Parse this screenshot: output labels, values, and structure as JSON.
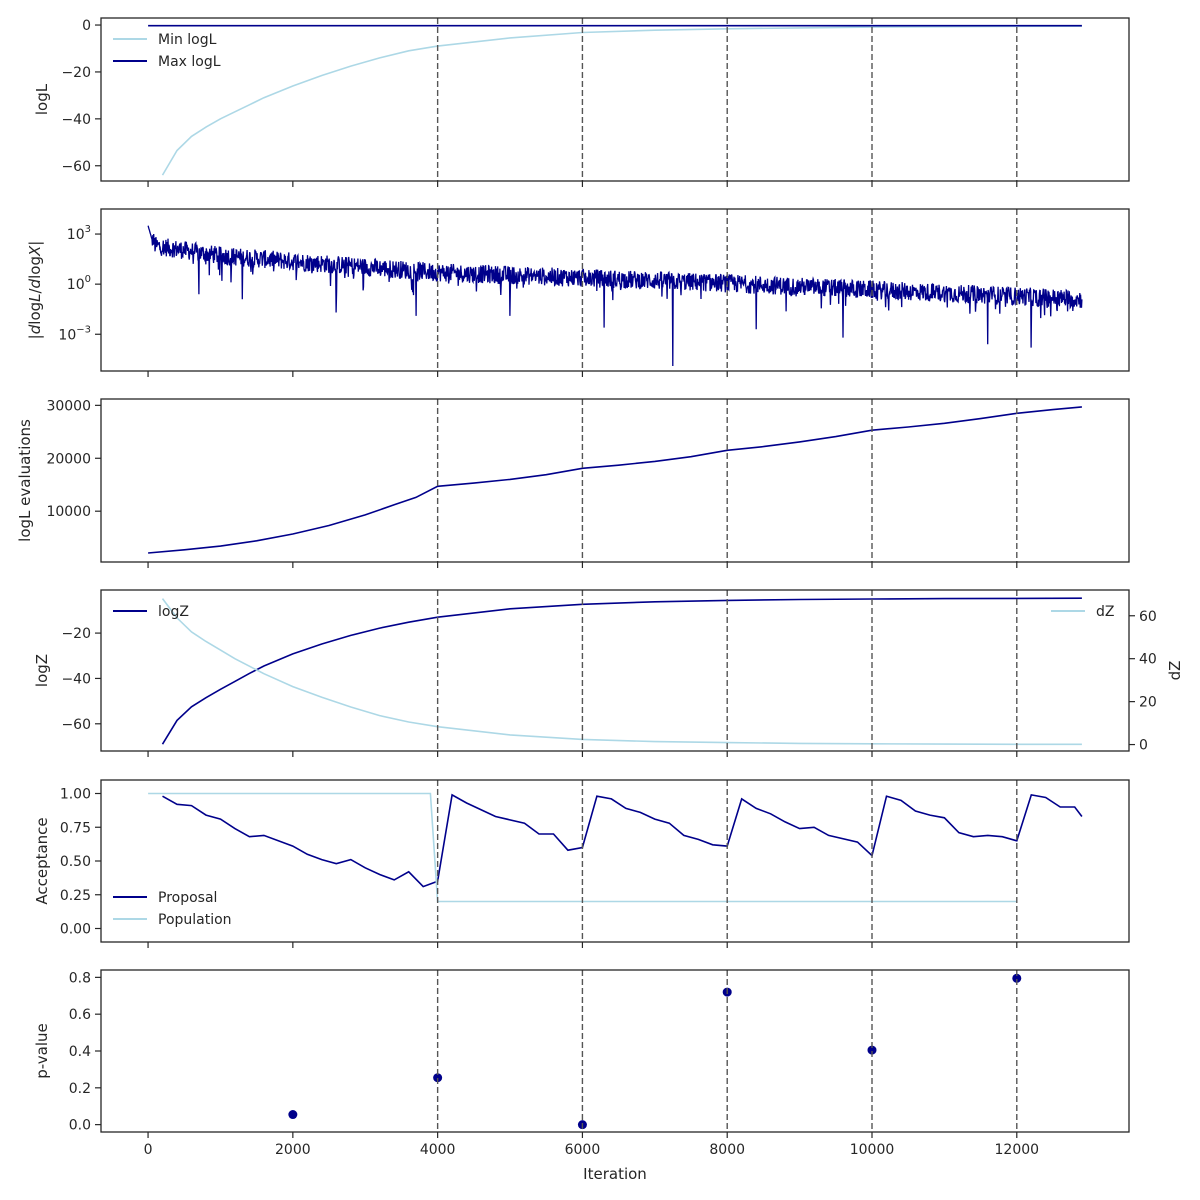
{
  "colors": {
    "dark": "#00008B",
    "light": "#ADD8E6",
    "vline": "#555555",
    "axis": "#262626",
    "text": "#262626"
  },
  "chart_data": [
    {
      "type": "line",
      "name": "logL",
      "ylabel": "logL",
      "xlim": [
        -650,
        13550
      ],
      "ylim": [
        -66.5,
        3
      ],
      "yticks": [
        -60,
        -40,
        -20,
        0
      ],
      "yticklabels": [
        "−60",
        "−40",
        "−20",
        "0"
      ],
      "legend": "upper-left",
      "vlines": [
        4000,
        6000,
        8000,
        10000,
        12000
      ],
      "series": [
        {
          "name": "Min logL",
          "color": "light",
          "x": [
            200,
            400,
            600,
            800,
            1000,
            1200,
            1400,
            1600,
            2000,
            2400,
            2800,
            3200,
            3600,
            4000,
            5000,
            6000,
            7000,
            8000,
            9000,
            10000,
            11000,
            12000,
            12900
          ],
          "y": [
            -64,
            -53.5,
            -47.5,
            -43.5,
            -40,
            -37,
            -34,
            -31,
            -26,
            -21.5,
            -17.5,
            -14,
            -11,
            -9,
            -5.5,
            -3.2,
            -2.2,
            -1.6,
            -1.2,
            -0.9,
            -0.7,
            -0.55,
            -0.5
          ]
        },
        {
          "name": "Max logL",
          "color": "dark",
          "x": [
            0,
            12900
          ],
          "y": [
            -0.3,
            -0.3
          ]
        }
      ]
    },
    {
      "type": "line",
      "name": "dlogL/dlogX",
      "ylabel": "|dlogL/dlogX|",
      "yscale": "log",
      "xlim": [
        -650,
        13550
      ],
      "ylim_log10": [
        -5.2,
        4.5
      ],
      "yticks_log10": [
        -3,
        0,
        3
      ],
      "vlines": [
        4000,
        6000,
        8000,
        10000,
        12000
      ],
      "series": [
        {
          "color": "dark",
          "x_start": 0,
          "x_end": 12900,
          "trend_log10": [
            [
              0,
              3.4
            ],
            [
              100,
              2.3
            ],
            [
              1000,
              1.7
            ],
            [
              4000,
              0.7
            ],
            [
              8000,
              0.05
            ],
            [
              12900,
              -0.9
            ]
          ],
          "spread_log10": 1.1,
          "low_spikes": [
            [
              700,
              -0.6
            ],
            [
              1300,
              -0.9
            ],
            [
              2600,
              -1.7
            ],
            [
              3700,
              -1.9
            ],
            [
              5000,
              -1.9
            ],
            [
              6300,
              -2.6
            ],
            [
              7250,
              -4.9
            ],
            [
              8400,
              -2.7
            ],
            [
              9600,
              -3.2
            ],
            [
              11600,
              -3.6
            ],
            [
              12200,
              -3.8
            ]
          ]
        }
      ]
    },
    {
      "type": "line",
      "name": "evaluations",
      "ylabel": "logL evaluations",
      "xlim": [
        -650,
        13550
      ],
      "ylim": [
        400,
        31200
      ],
      "yticks": [
        10000,
        20000,
        30000
      ],
      "yticklabels": [
        "10000",
        "20000",
        "30000"
      ],
      "vlines": [
        4000,
        6000,
        8000,
        10000,
        12000
      ],
      "series": [
        {
          "color": "dark",
          "x": [
            0,
            500,
            1000,
            1500,
            2000,
            2500,
            3000,
            3400,
            3700,
            4000,
            4500,
            5000,
            5500,
            6000,
            6500,
            7000,
            7500,
            8000,
            8500,
            9000,
            9500,
            10000,
            10500,
            11000,
            11500,
            12000,
            12500,
            12900
          ],
          "y": [
            2100,
            2700,
            3400,
            4400,
            5700,
            7300,
            9300,
            11200,
            12600,
            14700,
            15300,
            16000,
            16900,
            18100,
            18700,
            19400,
            20300,
            21500,
            22200,
            23100,
            24100,
            25300,
            25900,
            26600,
            27500,
            28500,
            29200,
            29700
          ]
        }
      ]
    },
    {
      "type": "line",
      "name": "logZ",
      "ylabel": "logZ",
      "y2label": "dZ",
      "xlim": [
        -650,
        13550
      ],
      "ylim": [
        -72,
        -1
      ],
      "yticks": [
        -60,
        -40,
        -20
      ],
      "yticklabels": [
        "−60",
        "−40",
        "−20"
      ],
      "y2lim": [
        -3,
        72
      ],
      "y2ticks": [
        0,
        20,
        40,
        60
      ],
      "y2ticklabels": [
        "0",
        "20",
        "40",
        "60"
      ],
      "legend": "upper-left",
      "legend2": "upper-right",
      "vlines": [
        4000,
        6000,
        8000,
        10000,
        12000
      ],
      "series": [
        {
          "name": "logZ",
          "color": "dark",
          "axis": "left",
          "x": [
            200,
            400,
            600,
            800,
            1000,
            1200,
            1400,
            1600,
            2000,
            2400,
            2800,
            3200,
            3600,
            4000,
            5000,
            6000,
            7000,
            8000,
            9000,
            10000,
            11000,
            12000,
            12900
          ],
          "y": [
            -69,
            -58.5,
            -52.5,
            -48.5,
            -44.8,
            -41.3,
            -37.8,
            -34.5,
            -29.2,
            -24.8,
            -21,
            -17.8,
            -15.2,
            -13,
            -9.3,
            -7.3,
            -6.2,
            -5.6,
            -5.2,
            -4.95,
            -4.8,
            -4.7,
            -4.6
          ]
        },
        {
          "name": "dZ",
          "color": "light",
          "axis": "right",
          "x": [
            200,
            400,
            600,
            800,
            1000,
            1200,
            1400,
            1600,
            2000,
            2400,
            2800,
            3200,
            3600,
            4000,
            5000,
            6000,
            7000,
            8000,
            9000,
            10000,
            11000,
            12000,
            12900
          ],
          "y": [
            68,
            59,
            52.5,
            48,
            44,
            40,
            36.5,
            33,
            27,
            22,
            17.5,
            13.5,
            10.5,
            8.3,
            4.5,
            2.4,
            1.4,
            0.9,
            0.55,
            0.35,
            0.2,
            0.12,
            0.1
          ]
        }
      ]
    },
    {
      "type": "line",
      "name": "acceptance",
      "ylabel": "Acceptance",
      "xlim": [
        -650,
        13550
      ],
      "ylim": [
        -0.1,
        1.1
      ],
      "yticks": [
        0,
        0.25,
        0.5,
        0.75,
        1
      ],
      "yticklabels": [
        "0.00",
        "0.25",
        "0.50",
        "0.75",
        "1.00"
      ],
      "legend": "lower-left",
      "vlines": [
        4000,
        6000,
        8000,
        10000,
        12000
      ],
      "series": [
        {
          "name": "Proposal",
          "color": "dark",
          "x": [
            200,
            400,
            600,
            800,
            1000,
            1200,
            1400,
            1600,
            2000,
            2200,
            2400,
            2600,
            2800,
            3000,
            3200,
            3400,
            3600,
            3800,
            4000,
            4200,
            4400,
            4800,
            5200,
            5400,
            5600,
            5800,
            6000,
            6200,
            6400,
            6600,
            6800,
            7000,
            7200,
            7400,
            7600,
            7800,
            8000,
            8200,
            8400,
            8600,
            8800,
            9000,
            9200,
            9400,
            9800,
            10000,
            10200,
            10400,
            10600,
            10800,
            11000,
            11200,
            11400,
            11600,
            11800,
            12000,
            12200,
            12400,
            12600,
            12800,
            12900
          ],
          "y": [
            0.98,
            0.92,
            0.91,
            0.84,
            0.81,
            0.74,
            0.68,
            0.69,
            0.61,
            0.55,
            0.51,
            0.48,
            0.51,
            0.45,
            0.4,
            0.36,
            0.42,
            0.31,
            0.35,
            0.99,
            0.93,
            0.83,
            0.78,
            0.7,
            0.7,
            0.58,
            0.6,
            0.98,
            0.96,
            0.89,
            0.86,
            0.81,
            0.78,
            0.69,
            0.66,
            0.62,
            0.61,
            0.96,
            0.89,
            0.85,
            0.79,
            0.74,
            0.75,
            0.69,
            0.64,
            0.54,
            0.98,
            0.95,
            0.87,
            0.84,
            0.82,
            0.71,
            0.68,
            0.69,
            0.68,
            0.65,
            0.99,
            0.97,
            0.9,
            0.9,
            0.83
          ]
        },
        {
          "name": "Population",
          "color": "light",
          "x": [
            0,
            3900,
            4000,
            12000
          ],
          "y": [
            1.0,
            1.0,
            0.2,
            0.2
          ]
        }
      ]
    },
    {
      "type": "scatter",
      "name": "pvalue",
      "ylabel": "p-value",
      "xlabel": "Iteration",
      "xlim": [
        -650,
        13550
      ],
      "ylim": [
        -0.04,
        0.84
      ],
      "yticks": [
        0,
        0.2,
        0.4,
        0.6,
        0.8
      ],
      "yticklabels": [
        "0.0",
        "0.2",
        "0.4",
        "0.6",
        "0.8"
      ],
      "xticks": [
        0,
        2000,
        4000,
        6000,
        8000,
        10000,
        12000
      ],
      "xticklabels": [
        "0",
        "2000",
        "4000",
        "6000",
        "8000",
        "10000",
        "12000"
      ],
      "vlines": [
        4000,
        6000,
        8000,
        10000,
        12000
      ],
      "series": [
        {
          "color": "dark",
          "x": [
            2000,
            4000,
            6000,
            8000,
            10000,
            12000
          ],
          "y": [
            0.055,
            0.255,
            0.0,
            0.72,
            0.405,
            0.795
          ]
        }
      ]
    }
  ]
}
